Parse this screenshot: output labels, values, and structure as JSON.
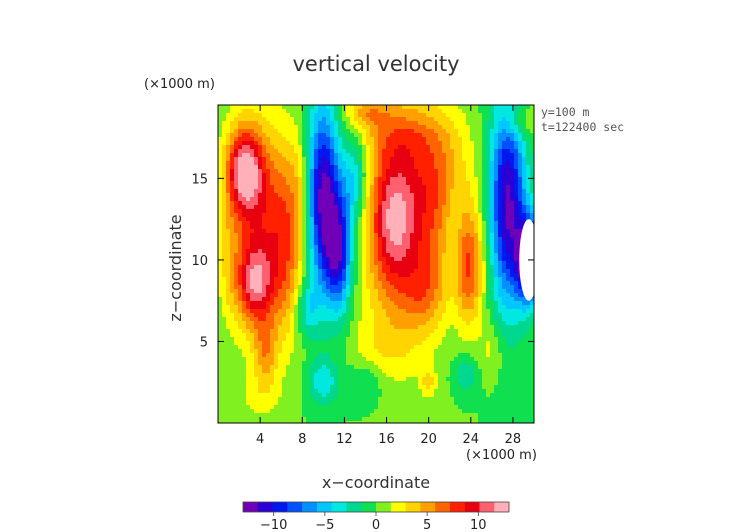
{
  "chart_data": {
    "type": "heatmap",
    "title": "vertical velocity",
    "xlabel": "x−coordinate",
    "ylabel": "z−coordinate",
    "x_unit": "(×1000 m)",
    "y_unit": "(×1000 m)",
    "annotations": [
      "y=100 m",
      "t=122400 sec"
    ],
    "xlim": [
      0,
      30
    ],
    "ylim": [
      0,
      19.5
    ],
    "x_ticks": [
      4,
      8,
      12,
      16,
      20,
      24,
      28
    ],
    "y_ticks": [
      5,
      10,
      15
    ],
    "colorbar": {
      "ticks": [
        -10,
        -5,
        0,
        5,
        10
      ],
      "range": [
        -13,
        13
      ],
      "colors": [
        "#7000b8",
        "#2a00d4",
        "#0018f0",
        "#0050ff",
        "#0090ff",
        "#00c8ff",
        "#00e8e0",
        "#00d890",
        "#10e050",
        "#80f020",
        "#ffff00",
        "#ffd400",
        "#ffa000",
        "#ff6400",
        "#ff2000",
        "#e80010",
        "#ff6070",
        "#ffb0b8"
      ]
    },
    "field_blobs": [
      {
        "x": 2.5,
        "z": 15.5,
        "sx": 1.2,
        "sz": 1.8,
        "v": 10
      },
      {
        "x": 3.8,
        "z": 12.0,
        "sx": 2.0,
        "sz": 4.5,
        "v": 7
      },
      {
        "x": 3.5,
        "z": 8.5,
        "sx": 1.2,
        "sz": 1.6,
        "v": 7
      },
      {
        "x": 6.5,
        "z": 11.0,
        "sx": 1.2,
        "sz": 4.0,
        "v": 5
      },
      {
        "x": 7.8,
        "z": 14.5,
        "sx": 0.7,
        "sz": 2.5,
        "v": 2
      },
      {
        "x": 4.5,
        "z": 4.3,
        "sx": 0.8,
        "sz": 1.5,
        "v": 4
      },
      {
        "x": 10.0,
        "z": 14.0,
        "sx": 1.1,
        "sz": 4.0,
        "v": -12
      },
      {
        "x": 11.5,
        "z": 10.5,
        "sx": 0.9,
        "sz": 2.5,
        "v": -10
      },
      {
        "x": 13.0,
        "z": 15.0,
        "sx": 0.9,
        "sz": 2.0,
        "v": -5
      },
      {
        "x": 8.5,
        "z": 7.0,
        "sx": 0.8,
        "sz": 1.2,
        "v": -4
      },
      {
        "x": 17.5,
        "z": 12.5,
        "sx": 2.6,
        "sz": 5.0,
        "v": 9
      },
      {
        "x": 16.5,
        "z": 12.5,
        "sx": 1.2,
        "sz": 2.5,
        "v": 4
      },
      {
        "x": 19.8,
        "z": 8.0,
        "sx": 1.3,
        "sz": 1.6,
        "v": 3
      },
      {
        "x": 21.5,
        "z": 15.0,
        "sx": 2.0,
        "sz": 3.0,
        "v": 4
      },
      {
        "x": 23.5,
        "z": 9.5,
        "sx": 1.2,
        "sz": 2.5,
        "v": 8
      },
      {
        "x": 22.5,
        "z": 10.5,
        "sx": 0.8,
        "sz": 3.0,
        "v": -4
      },
      {
        "x": 27.5,
        "z": 13.5,
        "sx": 1.2,
        "sz": 4.5,
        "v": -12
      },
      {
        "x": 29.5,
        "z": 10.0,
        "sx": 0.8,
        "sz": 1.8,
        "v": -14
      },
      {
        "x": 28.5,
        "z": 18.5,
        "sx": 1.2,
        "sz": 0.8,
        "v": 3
      },
      {
        "x": 14.0,
        "z": 19.0,
        "sx": 1.5,
        "sz": 0.6,
        "v": 4
      },
      {
        "x": 17.0,
        "z": 17.5,
        "sx": 3.0,
        "sz": 1.0,
        "v": 2
      },
      {
        "x": 10.0,
        "z": 2.5,
        "sx": 1.0,
        "sz": 1.0,
        "v": -4
      },
      {
        "x": 14.0,
        "z": 2.5,
        "sx": 1.2,
        "sz": 1.0,
        "v": -2
      },
      {
        "x": 23.5,
        "z": 3.0,
        "sx": 0.8,
        "sz": 0.8,
        "v": -3
      },
      {
        "x": 20.0,
        "z": 2.5,
        "sx": 0.5,
        "sz": 0.6,
        "v": 3
      },
      {
        "x": 26.0,
        "z": 4.5,
        "sx": 0.8,
        "sz": 1.2,
        "v": 2
      },
      {
        "x": 15.0,
        "z": 4.5,
        "sx": 2.0,
        "sz": 1.2,
        "v": 1.5
      },
      {
        "x": 4.0,
        "z": 1.5,
        "sx": 1.5,
        "sz": 1.0,
        "v": 1.5
      },
      {
        "x": 1.0,
        "z": 10.0,
        "sx": 0.6,
        "sz": 2.5,
        "v": 1.5
      }
    ],
    "white_region": {
      "x": 29.5,
      "z": 10.0,
      "rx": 0.9,
      "rz": 2.5
    }
  }
}
